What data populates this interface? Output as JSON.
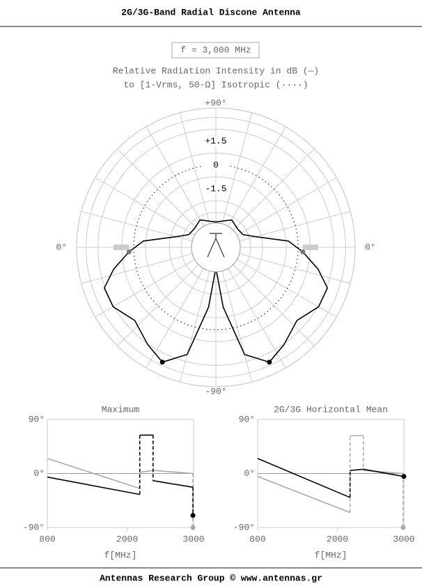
{
  "title": "2G/3G-Band Radial Discone Antenna",
  "frequency_label": "f = 3,000 MHz",
  "subtitle_lines": [
    "Relative Radiation Intensity in dB (—)",
    "to [1-Vrms, 50-Ω] Isotropic (····)"
  ],
  "footer": "Antennas Research Group © www.antennas.gr",
  "chart_data": [
    {
      "type": "polar",
      "angle_labels": [
        {
          "value": 90,
          "label": "+90°"
        },
        {
          "value": 0,
          "label": "0°"
        },
        {
          "value": -90,
          "label": "-90°"
        }
      ],
      "rlim": [
        -5.2,
        3.6
      ],
      "rticks": [
        {
          "value": 1.5,
          "label": "+1.5"
        },
        0,
        -1.5
      ],
      "rgrid": [
        -3.75,
        -3,
        -2.25,
        -0.75,
        0.75,
        2.25,
        3,
        3.6
      ],
      "isotropic": 0,
      "series": [
        {
          "name": "pattern",
          "color": "#000",
          "theta": [
            90,
            60,
            40,
            25,
            15,
            5,
            -3,
            -12,
            -20,
            -30,
            -42,
            -55,
            -65,
            -75,
            -83,
            -90
          ],
          "r": [
            -3.6,
            -3.2,
            -3.4,
            -3.3,
            -2.6,
            -0.6,
            0.3,
            1.4,
            2.3,
            2.3,
            1.7,
            2.3,
            2.8,
            1.8,
            -1.4,
            -3.9
          ]
        }
      ],
      "points": [
        {
          "theta": -65,
          "r": 2.8,
          "color": "#000"
        },
        {
          "theta": -3,
          "r": 0.3,
          "color": "#777"
        }
      ]
    },
    {
      "type": "line",
      "title": "Maximum",
      "x_label": "f[MHz]",
      "xlim": [
        800,
        3000
      ],
      "xticks": [
        800,
        2000,
        3000
      ],
      "ylim": [
        -90,
        90
      ],
      "yticks": [
        {
          "value": 90,
          "label": "90°"
        },
        {
          "value": 0,
          "label": "0°"
        },
        {
          "value": -90,
          "label": "-90°"
        }
      ],
      "series": [
        {
          "name": "mean",
          "color": "#aaa",
          "x": [
            800,
            2190,
            2190,
            2390,
            2990,
            2990
          ],
          "values": [
            25,
            -25,
            2,
            5,
            0,
            -90
          ]
        },
        {
          "name": "max",
          "color": "#000",
          "x": [
            800,
            2190,
            2190,
            2390,
            2390,
            2990,
            2990
          ],
          "values": [
            -6,
            -35,
            64,
            64,
            -12,
            -23,
            -70
          ]
        }
      ]
    },
    {
      "type": "line",
      "title": "2G/3G Horizontal Mean",
      "x_label": "f[MHz]",
      "xlim": [
        800,
        3000
      ],
      "xticks": [
        800,
        2000,
        3000
      ],
      "ylim": [
        -90,
        90
      ],
      "yticks": [
        {
          "value": 90,
          "label": "90°"
        },
        {
          "value": 0,
          "label": "0°"
        },
        {
          "value": -90,
          "label": "-90°"
        }
      ],
      "series": [
        {
          "name": "max",
          "color": "#aaa",
          "x": [
            800,
            2190,
            2190,
            2390,
            2390,
            2990,
            2990
          ],
          "values": [
            -5,
            -65,
            63,
            63,
            5,
            0,
            -90
          ]
        },
        {
          "name": "mean",
          "color": "#000",
          "x": [
            800,
            2190,
            2190,
            2390,
            3000
          ],
          "values": [
            25,
            -40,
            5,
            7,
            -5
          ]
        }
      ]
    }
  ]
}
